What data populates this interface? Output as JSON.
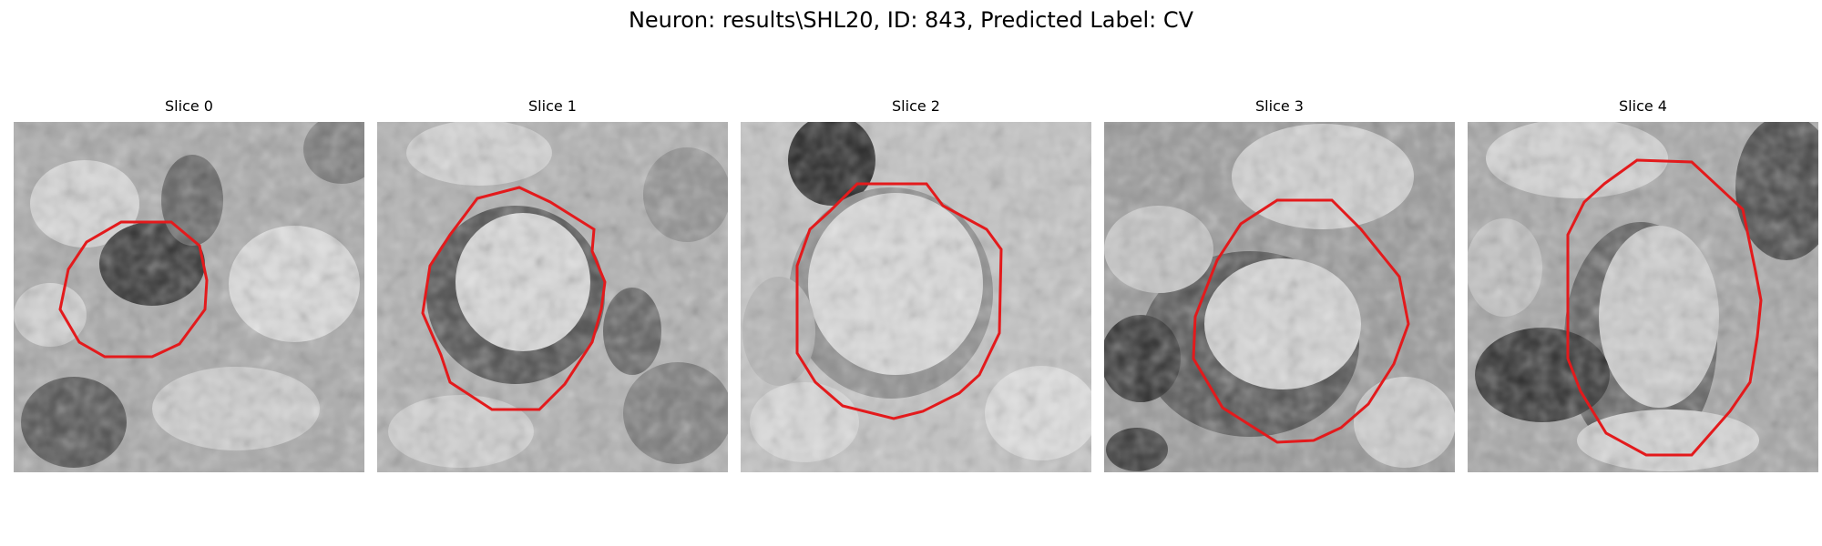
{
  "figure": {
    "title": "Neuron: results\\SHL20, ID: 843, Predicted Label: CV"
  },
  "panels": [
    {
      "title": "Slice 0"
    },
    {
      "title": "Slice 1"
    },
    {
      "title": "Slice 2"
    },
    {
      "title": "Slice 3"
    },
    {
      "title": "Slice 4"
    }
  ],
  "colors": {
    "contour": "#e31a1c",
    "background": "#ffffff"
  }
}
